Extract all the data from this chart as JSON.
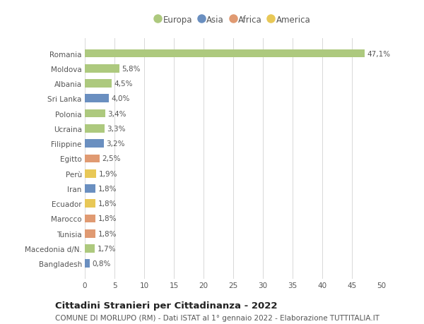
{
  "categories": [
    "Romania",
    "Moldova",
    "Albania",
    "Sri Lanka",
    "Polonia",
    "Ucraina",
    "Filippine",
    "Egitto",
    "Perù",
    "Iran",
    "Ecuador",
    "Marocco",
    "Tunisia",
    "Macedonia d/N.",
    "Bangladesh"
  ],
  "values": [
    47.1,
    5.8,
    4.5,
    4.0,
    3.4,
    3.3,
    3.2,
    2.5,
    1.9,
    1.8,
    1.8,
    1.8,
    1.8,
    1.7,
    0.8
  ],
  "labels": [
    "47,1%",
    "5,8%",
    "4,5%",
    "4,0%",
    "3,4%",
    "3,3%",
    "3,2%",
    "2,5%",
    "1,9%",
    "1,8%",
    "1,8%",
    "1,8%",
    "1,8%",
    "1,7%",
    "0,8%"
  ],
  "continent": [
    "Europa",
    "Europa",
    "Europa",
    "Asia",
    "Europa",
    "Europa",
    "Asia",
    "Africa",
    "America",
    "Asia",
    "America",
    "Africa",
    "Africa",
    "Europa",
    "Asia"
  ],
  "colors": {
    "Europa": "#adc97e",
    "Asia": "#6a8fc0",
    "Africa": "#e09a72",
    "America": "#e8c857"
  },
  "legend_order": [
    "Europa",
    "Asia",
    "Africa",
    "America"
  ],
  "xlim": [
    0,
    50
  ],
  "xticks": [
    0,
    5,
    10,
    15,
    20,
    25,
    30,
    35,
    40,
    45,
    50
  ],
  "title": "Cittadini Stranieri per Cittadinanza - 2022",
  "subtitle": "COMUNE DI MORLUPO (RM) - Dati ISTAT al 1° gennaio 2022 - Elaborazione TUTTITALIA.IT",
  "background_color": "#ffffff",
  "grid_color": "#d8d8d8",
  "bar_height": 0.55,
  "label_fontsize": 7.5,
  "tick_fontsize": 7.5,
  "title_fontsize": 9.5,
  "subtitle_fontsize": 7.5
}
